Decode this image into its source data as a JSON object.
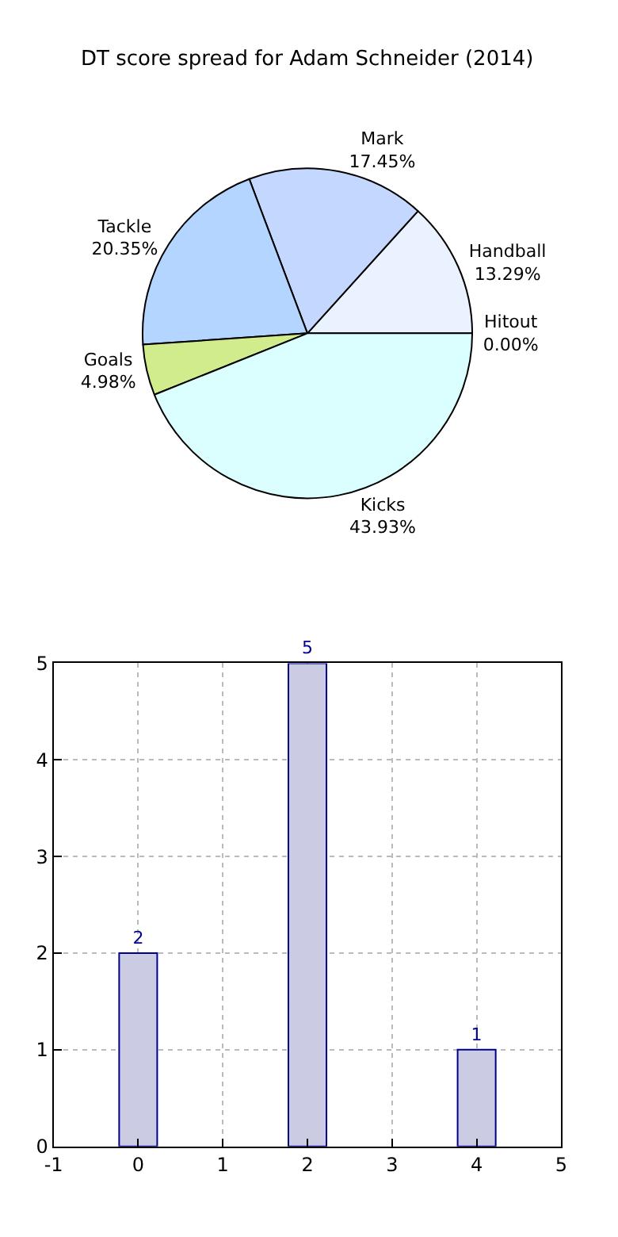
{
  "chart_data": [
    {
      "type": "pie",
      "title": "DT score spread for Adam Schneider (2014)",
      "categories": [
        "Hitout",
        "Handball",
        "Mark",
        "Tackle",
        "Goals",
        "Kicks"
      ],
      "values": [
        0.0,
        13.29,
        17.45,
        20.35,
        4.98,
        43.93
      ],
      "value_labels": [
        "0.00%",
        "13.29%",
        "17.45%",
        "20.35%",
        "4.98%",
        "43.93%"
      ],
      "colors": [
        "#f4f4f4",
        "#eaf2ff",
        "#c4d8ff",
        "#b3d5ff",
        "#d0ec8c",
        "#dbffff"
      ]
    },
    {
      "type": "bar",
      "x": [
        0,
        1,
        2,
        3,
        4
      ],
      "values": [
        2,
        null,
        5,
        null,
        1
      ],
      "value_labels": [
        "2",
        null,
        "5",
        null,
        "1"
      ],
      "color": "#cbcbe3",
      "xlim": [
        -1,
        5
      ],
      "xticks": [
        -1,
        0,
        1,
        2,
        3,
        4,
        5
      ],
      "ylim": [
        0,
        5
      ],
      "yticks": [
        0,
        1,
        2,
        3,
        4,
        5
      ],
      "grid": true
    }
  ]
}
